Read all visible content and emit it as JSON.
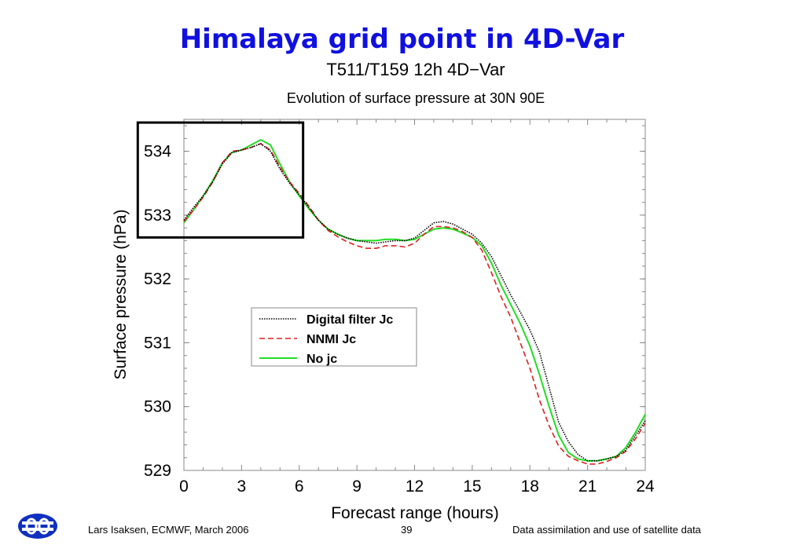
{
  "slide": {
    "title": "Himalaya grid point in 4D-Var",
    "footer_left": "Lars Isaksen, ECMWF, March 2006",
    "page_number": "39",
    "footer_right": "Data assimilation and use of satellite data",
    "logo_icon": "ecmwf-logo-icon",
    "title_color": "#1010e0"
  },
  "chart_data": {
    "type": "line",
    "title": "T511/T159 12h 4D−Var",
    "subtitle": "Evolution of surface pressure at 30N 90E",
    "xlabel": "Forecast range (hours)",
    "ylabel": "Surface pressure (hPa)",
    "xlim": [
      0,
      24
    ],
    "ylim": [
      529,
      534.5
    ],
    "xticks": [
      0,
      3,
      6,
      9,
      12,
      15,
      18,
      21,
      24
    ],
    "yticks": [
      529,
      530,
      531,
      532,
      533,
      534
    ],
    "grid": false,
    "legend_position": "center-left",
    "highlight_box": {
      "x": [
        -2.4,
        6.2
      ],
      "y": [
        532.65,
        534.45
      ]
    },
    "x": [
      0,
      0.5,
      1,
      1.5,
      2,
      2.5,
      3,
      3.5,
      4,
      4.5,
      5,
      5.5,
      6,
      6.5,
      7,
      7.5,
      8,
      8.5,
      9,
      9.5,
      10,
      10.5,
      11,
      11.5,
      12,
      12.5,
      13,
      13.5,
      14,
      14.5,
      15,
      15.5,
      16,
      16.5,
      17,
      17.5,
      18,
      18.5,
      19,
      19.5,
      20,
      20.5,
      21,
      21.5,
      22,
      22.5,
      23,
      23.5,
      24
    ],
    "series": [
      {
        "name": "Digital filter Jc",
        "color": "#000000",
        "style": "dotted",
        "values": [
          532.92,
          533.12,
          533.3,
          533.52,
          533.8,
          533.98,
          534.02,
          534.06,
          534.12,
          534.0,
          533.72,
          533.5,
          533.32,
          533.12,
          532.92,
          532.78,
          532.7,
          532.64,
          532.6,
          532.58,
          532.56,
          532.58,
          532.6,
          532.6,
          532.64,
          532.76,
          532.88,
          532.9,
          532.86,
          532.78,
          532.7,
          532.56,
          532.35,
          532.05,
          531.75,
          531.48,
          531.2,
          530.85,
          530.3,
          529.75,
          529.45,
          529.25,
          529.15,
          529.15,
          529.18,
          529.22,
          529.32,
          529.55,
          529.78
        ]
      },
      {
        "name": "NNMI Jc",
        "color": "#dd2020",
        "style": "dashed",
        "values": [
          532.9,
          533.08,
          533.28,
          533.52,
          533.82,
          534.0,
          534.02,
          534.06,
          534.12,
          534.02,
          533.75,
          533.52,
          533.34,
          533.14,
          532.92,
          532.76,
          532.66,
          532.58,
          532.52,
          532.48,
          532.48,
          532.52,
          532.52,
          532.5,
          532.56,
          532.7,
          532.82,
          532.82,
          532.8,
          532.74,
          532.65,
          532.45,
          532.1,
          531.72,
          531.4,
          531.0,
          530.6,
          530.1,
          529.7,
          529.38,
          529.22,
          529.15,
          529.1,
          529.1,
          529.14,
          529.2,
          529.3,
          529.5,
          529.74
        ]
      },
      {
        "name": "No jc",
        "color": "#22dd22",
        "style": "solid",
        "values": [
          532.88,
          533.08,
          533.3,
          533.54,
          533.82,
          533.98,
          534.02,
          534.1,
          534.18,
          534.1,
          533.8,
          533.52,
          533.3,
          533.1,
          532.92,
          532.78,
          532.7,
          532.64,
          532.6,
          532.6,
          532.6,
          532.62,
          532.62,
          532.6,
          532.62,
          532.7,
          532.78,
          532.8,
          532.78,
          532.72,
          532.65,
          532.52,
          532.25,
          531.9,
          531.6,
          531.3,
          530.95,
          530.5,
          530.0,
          529.55,
          529.28,
          529.18,
          529.15,
          529.15,
          529.18,
          529.22,
          529.36,
          529.6,
          529.88
        ]
      }
    ]
  }
}
